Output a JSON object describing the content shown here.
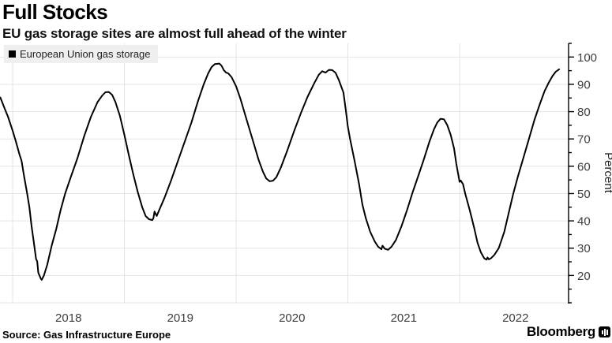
{
  "header": {
    "title": "Full Stocks",
    "subtitle": "EU gas storage sites are almost full ahead of the winter"
  },
  "legend": {
    "items": [
      {
        "label": "European Union gas storage",
        "color": "#000000"
      }
    ]
  },
  "footer": {
    "source": "Source: Gas Infrastructure Europe",
    "brand": "Bloomberg"
  },
  "colors": {
    "line": "#000000",
    "grid": "#e4e4e4",
    "axis": "#000000",
    "tick_text": "#3d3d3d",
    "legend_bg": "#efefef",
    "background": "#ffffff"
  },
  "chart_data": {
    "type": "line",
    "title": "Full Stocks",
    "subtitle": "EU gas storage sites are almost full ahead of the winter",
    "xlabel": "",
    "ylabel": "Percent",
    "grid": true,
    "legend_position": "top-left",
    "y_axis": {
      "side": "right",
      "domain": [
        10,
        105
      ],
      "tick_labels": [
        20,
        30,
        40,
        50,
        60,
        70,
        80,
        90,
        100
      ],
      "minor_tick_step": 5
    },
    "x_axis": {
      "domain_years": [
        2017.887,
        2022.975
      ],
      "gridline_years": [
        2018,
        2019,
        2020,
        2021,
        2022
      ],
      "ticks": [
        {
          "label": "2018",
          "center": 2018.5
        },
        {
          "label": "2019",
          "center": 2019.5
        },
        {
          "label": "2020",
          "center": 2020.5
        },
        {
          "label": "2021",
          "center": 2021.5
        },
        {
          "label": "2022",
          "center": 2022.5
        }
      ]
    },
    "series": [
      {
        "name": "European Union gas storage",
        "color": "#000000",
        "unit": "percent",
        "x_unit": "decimal-year",
        "points": [
          [
            2017.89,
            85.2
          ],
          [
            2017.93,
            81.0
          ],
          [
            2017.96,
            78.0
          ],
          [
            2018.0,
            73.0
          ],
          [
            2018.03,
            69.0
          ],
          [
            2018.06,
            64.5
          ],
          [
            2018.08,
            62.0
          ],
          [
            2018.1,
            57.0
          ],
          [
            2018.13,
            50.0
          ],
          [
            2018.15,
            45.0
          ],
          [
            2018.17,
            38.0
          ],
          [
            2018.19,
            32.0
          ],
          [
            2018.21,
            26.0
          ],
          [
            2018.22,
            25.2
          ],
          [
            2018.23,
            21.0
          ],
          [
            2018.25,
            19.0
          ],
          [
            2018.26,
            18.4
          ],
          [
            2018.28,
            20.0
          ],
          [
            2018.31,
            24.0
          ],
          [
            2018.35,
            31.0
          ],
          [
            2018.39,
            37.0
          ],
          [
            2018.43,
            44.0
          ],
          [
            2018.47,
            50.0
          ],
          [
            2018.52,
            56.0
          ],
          [
            2018.58,
            63.0
          ],
          [
            2018.64,
            71.0
          ],
          [
            2018.7,
            78.0
          ],
          [
            2018.76,
            83.5
          ],
          [
            2018.8,
            85.8
          ],
          [
            2018.83,
            87.1
          ],
          [
            2018.86,
            87.2
          ],
          [
            2018.89,
            86.2
          ],
          [
            2018.92,
            83.5
          ],
          [
            2018.96,
            78.5
          ],
          [
            2019.0,
            71.5
          ],
          [
            2019.04,
            64.0
          ],
          [
            2019.08,
            57.0
          ],
          [
            2019.12,
            50.5
          ],
          [
            2019.16,
            45.0
          ],
          [
            2019.19,
            41.8
          ],
          [
            2019.22,
            40.6
          ],
          [
            2019.25,
            40.3
          ],
          [
            2019.26,
            41.0
          ],
          [
            2019.27,
            43.4
          ],
          [
            2019.29,
            41.8
          ],
          [
            2019.31,
            43.8
          ],
          [
            2019.36,
            48.5
          ],
          [
            2019.42,
            55.0
          ],
          [
            2019.48,
            62.0
          ],
          [
            2019.54,
            69.0
          ],
          [
            2019.6,
            76.0
          ],
          [
            2019.66,
            84.0
          ],
          [
            2019.71,
            90.0
          ],
          [
            2019.75,
            94.0
          ],
          [
            2019.78,
            96.3
          ],
          [
            2019.81,
            97.4
          ],
          [
            2019.85,
            97.6
          ],
          [
            2019.87,
            96.8
          ],
          [
            2019.89,
            95.2
          ],
          [
            2019.91,
            94.3
          ],
          [
            2019.93,
            94.0
          ],
          [
            2019.96,
            92.6
          ],
          [
            2020.0,
            89.3
          ],
          [
            2020.04,
            84.5
          ],
          [
            2020.08,
            79.0
          ],
          [
            2020.12,
            73.5
          ],
          [
            2020.16,
            68.0
          ],
          [
            2020.2,
            62.5
          ],
          [
            2020.24,
            58.0
          ],
          [
            2020.27,
            55.5
          ],
          [
            2020.3,
            54.5
          ],
          [
            2020.33,
            54.7
          ],
          [
            2020.36,
            56.0
          ],
          [
            2020.4,
            59.5
          ],
          [
            2020.46,
            66.0
          ],
          [
            2020.52,
            73.0
          ],
          [
            2020.58,
            79.5
          ],
          [
            2020.64,
            85.5
          ],
          [
            2020.7,
            90.5
          ],
          [
            2020.74,
            93.5
          ],
          [
            2020.77,
            94.8
          ],
          [
            2020.8,
            94.3
          ],
          [
            2020.83,
            95.3
          ],
          [
            2020.86,
            95.2
          ],
          [
            2020.89,
            94.2
          ],
          [
            2020.92,
            91.5
          ],
          [
            2020.96,
            87.0
          ],
          [
            2020.98,
            81.0
          ],
          [
            2021.0,
            74.5
          ],
          [
            2021.02,
            70.0
          ],
          [
            2021.06,
            62.0
          ],
          [
            2021.1,
            53.5
          ],
          [
            2021.13,
            46.0
          ],
          [
            2021.16,
            41.0
          ],
          [
            2021.2,
            36.0
          ],
          [
            2021.24,
            32.5
          ],
          [
            2021.27,
            30.6
          ],
          [
            2021.3,
            29.6
          ],
          [
            2021.31,
            30.9
          ],
          [
            2021.33,
            29.8
          ],
          [
            2021.36,
            29.4
          ],
          [
            2021.39,
            30.5
          ],
          [
            2021.43,
            33.0
          ],
          [
            2021.48,
            38.0
          ],
          [
            2021.53,
            44.0
          ],
          [
            2021.58,
            50.5
          ],
          [
            2021.63,
            56.5
          ],
          [
            2021.68,
            62.5
          ],
          [
            2021.73,
            69.0
          ],
          [
            2021.77,
            73.5
          ],
          [
            2021.8,
            76.0
          ],
          [
            2021.83,
            77.4
          ],
          [
            2021.86,
            77.2
          ],
          [
            2021.89,
            75.0
          ],
          [
            2021.92,
            71.5
          ],
          [
            2021.95,
            66.5
          ],
          [
            2021.97,
            61.0
          ],
          [
            2021.99,
            56.5
          ],
          [
            2022.0,
            54.3
          ],
          [
            2022.01,
            54.8
          ],
          [
            2022.03,
            53.5
          ],
          [
            2022.05,
            50.0
          ],
          [
            2022.09,
            44.0
          ],
          [
            2022.13,
            37.5
          ],
          [
            2022.16,
            32.0
          ],
          [
            2022.19,
            28.5
          ],
          [
            2022.22,
            26.3
          ],
          [
            2022.24,
            25.8
          ],
          [
            2022.25,
            26.6
          ],
          [
            2022.26,
            25.9
          ],
          [
            2022.28,
            26.3
          ],
          [
            2022.31,
            27.5
          ],
          [
            2022.35,
            30.0
          ],
          [
            2022.4,
            36.0
          ],
          [
            2022.44,
            43.0
          ],
          [
            2022.48,
            50.0
          ],
          [
            2022.52,
            56.0
          ],
          [
            2022.57,
            63.0
          ],
          [
            2022.62,
            70.0
          ],
          [
            2022.67,
            77.0
          ],
          [
            2022.72,
            83.0
          ],
          [
            2022.76,
            87.5
          ],
          [
            2022.8,
            90.8
          ],
          [
            2022.83,
            93.0
          ],
          [
            2022.86,
            94.6
          ],
          [
            2022.89,
            95.5
          ]
        ]
      }
    ]
  }
}
